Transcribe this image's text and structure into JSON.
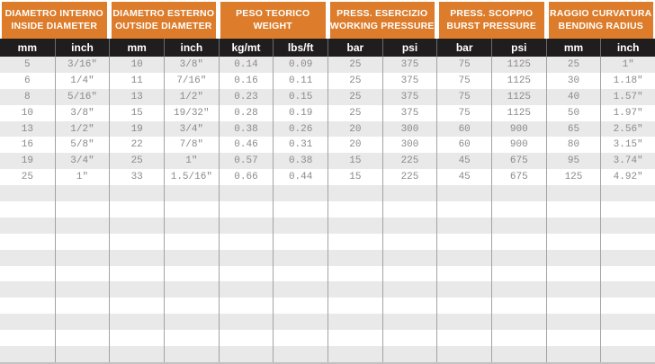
{
  "table": {
    "column_groups": [
      {
        "title_it": "DIAMETRO INTERNO",
        "title_en": "INSIDE DIAMETER",
        "units": [
          "mm",
          "inch"
        ]
      },
      {
        "title_it": "DIAMETRO ESTERNO",
        "title_en": "OUTSIDE DIAMETER",
        "units": [
          "mm",
          "inch"
        ]
      },
      {
        "title_it": "PESO TEORICO",
        "title_en": "WEIGHT",
        "units": [
          "kg/mt",
          "lbs/ft"
        ]
      },
      {
        "title_it": "PRESS. ESERCIZIO",
        "title_en": "WORKING PRESSURE",
        "units": [
          "bar",
          "psi"
        ]
      },
      {
        "title_it": "PRESS. SCOPPIO",
        "title_en": "BURST PRESSURE",
        "units": [
          "bar",
          "psi"
        ]
      },
      {
        "title_it": "RAGGIO CURVATURA",
        "title_en": "BENDING RADIUS",
        "units": [
          "mm",
          "inch"
        ]
      }
    ],
    "rows": [
      [
        "5",
        "3/16\"",
        "10",
        "3/8\"",
        "0.14",
        "0.09",
        "25",
        "375",
        "75",
        "1125",
        "25",
        "1\""
      ],
      [
        "6",
        "1/4\"",
        "11",
        "7/16\"",
        "0.16",
        "0.11",
        "25",
        "375",
        "75",
        "1125",
        "30",
        "1.18\""
      ],
      [
        "8",
        "5/16\"",
        "13",
        "1/2\"",
        "0.23",
        "0.15",
        "25",
        "375",
        "75",
        "1125",
        "40",
        "1.57\""
      ],
      [
        "10",
        "3/8\"",
        "15",
        "19/32\"",
        "0.28",
        "0.19",
        "25",
        "375",
        "75",
        "1125",
        "50",
        "1.97\""
      ],
      [
        "13",
        "1/2\"",
        "19",
        "3/4\"",
        "0.38",
        "0.26",
        "20",
        "300",
        "60",
        "900",
        "65",
        "2.56\""
      ],
      [
        "16",
        "5/8\"",
        "22",
        "7/8\"",
        "0.46",
        "0.31",
        "20",
        "300",
        "60",
        "900",
        "80",
        "3.15\""
      ],
      [
        "19",
        "3/4\"",
        "25",
        "1\"",
        "0.57",
        "0.38",
        "15",
        "225",
        "45",
        "675",
        "95",
        "3.74\""
      ],
      [
        "25",
        "1\"",
        "33",
        "1.5/16\"",
        "0.66",
        "0.44",
        "15",
        "225",
        "45",
        "675",
        "125",
        "4.92\""
      ]
    ],
    "empty_row_count": 11,
    "colors": {
      "header_orange": "#dd7c2b",
      "subheader_black": "#201d1e",
      "stripe_gray": "#e9e9e9",
      "row_white": "#ffffff",
      "divider_gray": "#a3a3a3",
      "data_text_gray": "#8a8a8a",
      "header_text": "#ffffff",
      "bottom_border": "#c2c2c2"
    }
  }
}
